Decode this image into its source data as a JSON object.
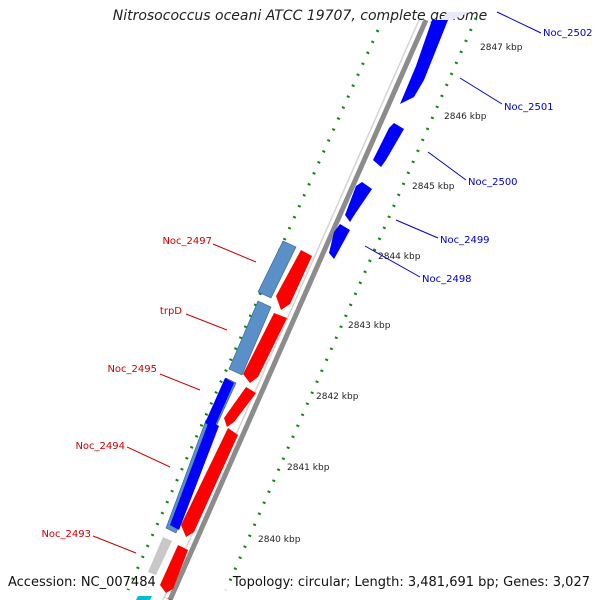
{
  "title": "Nitrosococcus oceani ATCC 19707, complete genome",
  "accession": "Accession: NC_007484",
  "summary": "Topology: circular; Length: 3,481,691 bp; Genes: 3,027",
  "colors": {
    "forward_cds": "#0000ff",
    "reverse_cds": "#ff0000",
    "forward_gene": "#5a8fc8",
    "reverse_label": "#cc0000",
    "forward_label": "#0000cc",
    "backbone": "#8c8c8c",
    "tick": "#118811"
  },
  "ticks": [
    "2847 kbp",
    "2846 kbp",
    "2845 kbp",
    "2844 kbp",
    "2843 kbp",
    "2842 kbp",
    "2841 kbp",
    "2840 kbp"
  ],
  "forward_labels": [
    "Noc_2502",
    "Noc_2501",
    "Noc_2500",
    "Noc_2499",
    "Noc_2498"
  ],
  "reverse_labels": [
    "Noc_2497",
    "trpD",
    "Noc_2495",
    "Noc_2494",
    "Noc_2493"
  ]
}
